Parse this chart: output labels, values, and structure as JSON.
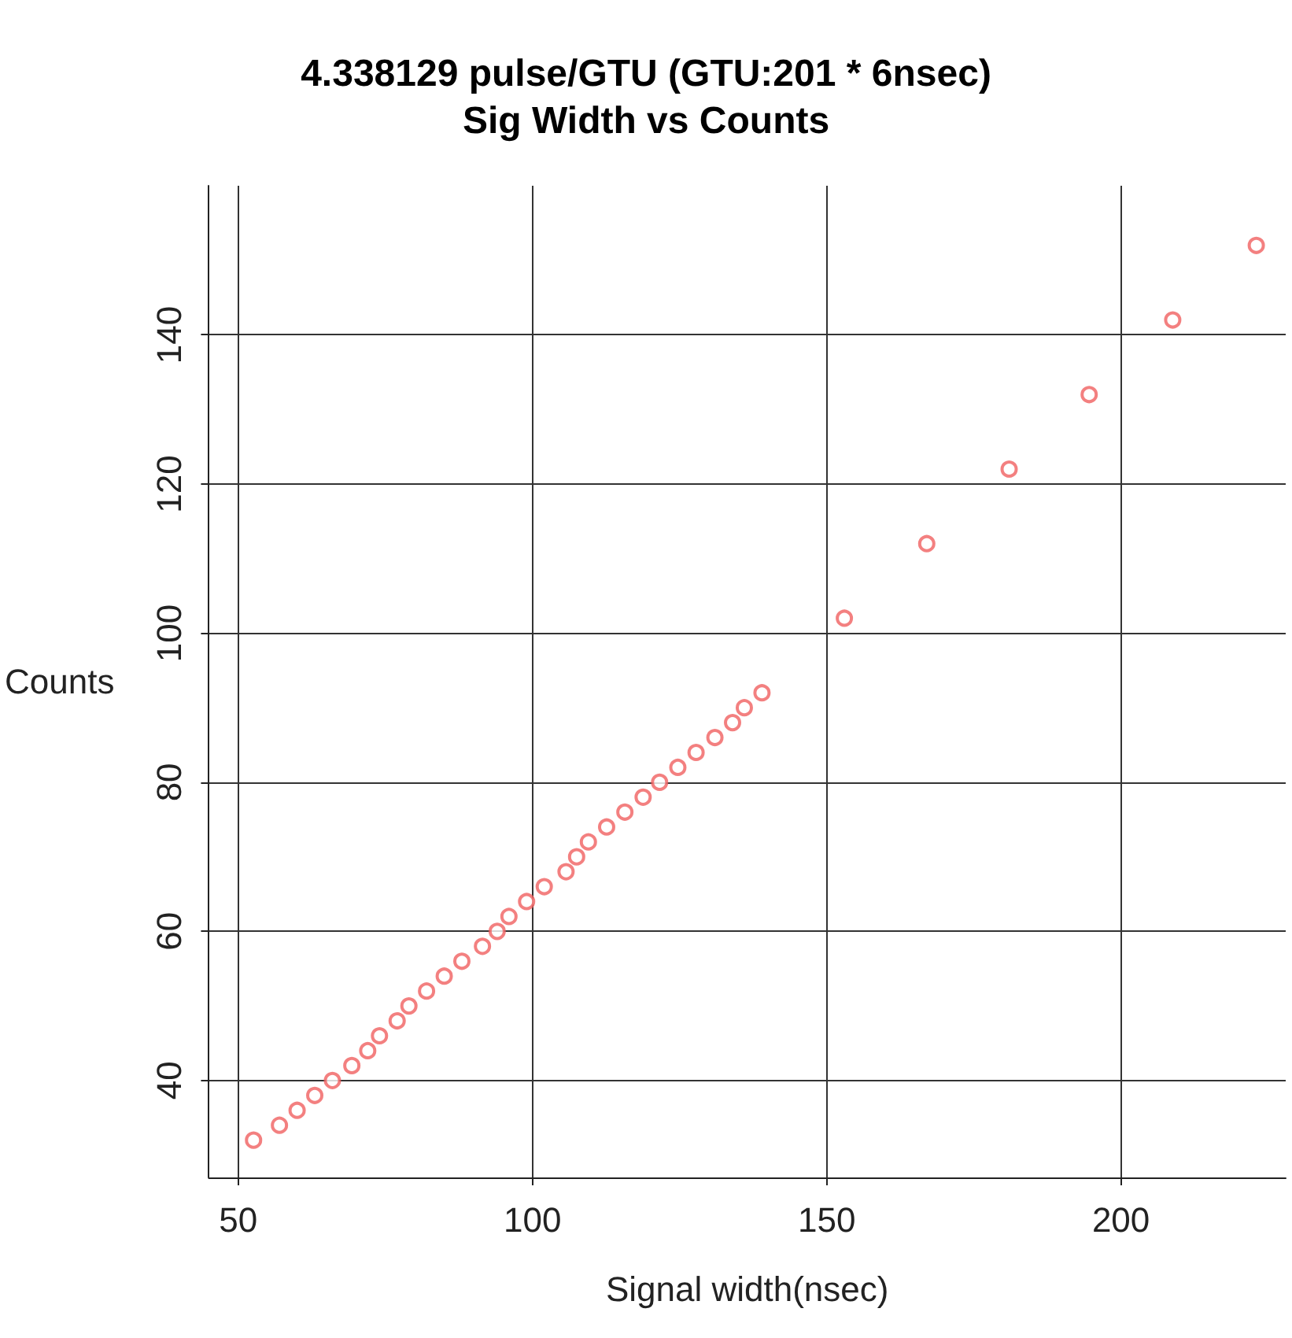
{
  "chart_data": {
    "type": "scatter",
    "title": "4.338129 pulse/GTU (GTU:201 * 6nsec)",
    "subtitle": "Sig Width vs Counts",
    "xlabel": "Signal width(nsec)",
    "ylabel": "Counts",
    "x": [
      52.6,
      57,
      60,
      63,
      66,
      69.3,
      72,
      74,
      77,
      79,
      82,
      85,
      88,
      91.5,
      94,
      96,
      99,
      102,
      105.7,
      107.5,
      109.5,
      112.6,
      115.7,
      118.8,
      121.6,
      124.7,
      127.8,
      131,
      134,
      136,
      139,
      153,
      167,
      181,
      194.6,
      208.8,
      223
    ],
    "series": [
      {
        "color": "#f06060",
        "values": [
          32,
          34,
          36,
          38,
          40,
          42,
          44,
          46,
          48,
          50,
          52,
          54,
          56,
          58,
          60,
          62,
          64,
          66,
          68,
          70,
          72,
          74,
          76,
          78,
          80,
          82,
          84,
          86,
          88,
          90,
          92,
          102,
          112,
          122,
          132,
          142,
          152
        ]
      }
    ],
    "xlim": [
      45,
      228
    ],
    "xticks": [
      50,
      100,
      150,
      200
    ],
    "ylim": [
      27,
      160
    ],
    "yticks": [
      40,
      60,
      80,
      100,
      120,
      140
    ],
    "grid": true,
    "marker": "circle"
  }
}
